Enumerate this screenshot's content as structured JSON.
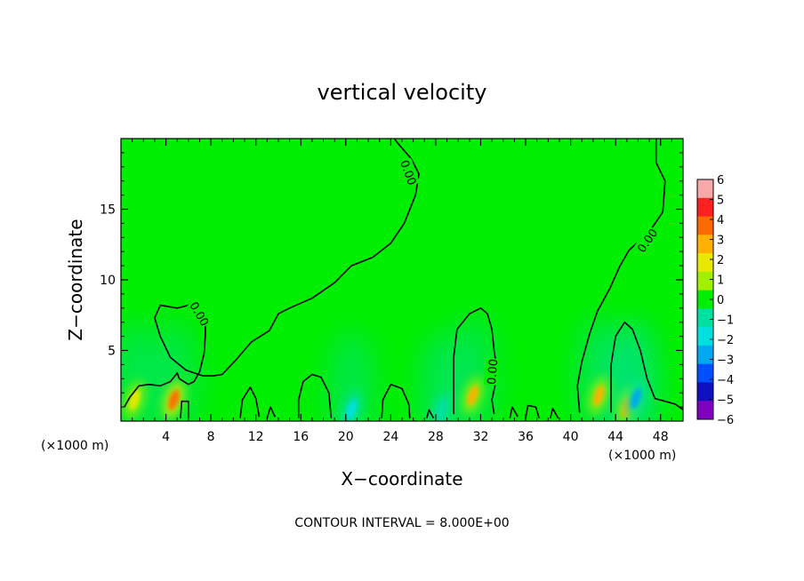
{
  "chart_data": {
    "type": "heatmap",
    "title": "vertical velocity",
    "xlabel": "X−coordinate",
    "ylabel": "Z−coordinate",
    "x_unit": "(×1000 m)",
    "y_unit": "(×1000 m)",
    "xlim": [
      0,
      50
    ],
    "ylim": [
      0,
      20
    ],
    "x_ticks": [
      4,
      8,
      12,
      16,
      20,
      24,
      28,
      32,
      36,
      40,
      44,
      48
    ],
    "y_ticks": [
      5,
      10,
      15
    ],
    "x_tick_labels": [
      "4",
      "8",
      "12",
      "16",
      "20",
      "24",
      "28",
      "32",
      "36",
      "40",
      "44",
      "48"
    ],
    "y_tick_labels": [
      "5",
      "10",
      "15"
    ],
    "colorbar": {
      "ticks": [
        6,
        5,
        4,
        3,
        2,
        1,
        0,
        -1,
        -2,
        -3,
        -4,
        -5,
        -6
      ],
      "tick_labels": [
        "6",
        "5",
        "4",
        "3",
        "2",
        "1",
        "0",
        "−1",
        "−2",
        "−3",
        "−4",
        "−5",
        "−6"
      ],
      "colors": [
        "#f7a8a8",
        "#ff2020",
        "#ff6a00",
        "#ffb000",
        "#e8e800",
        "#a0f000",
        "#00ee00",
        "#00e0a0",
        "#00e0e0",
        "#00a8f0",
        "#0050ff",
        "#1010c0",
        "#8000c0"
      ]
    },
    "contour_interval_text": "CONTOUR INTERVAL = 8.000E+00",
    "contour_label": "0.00",
    "contour_zero": [
      {
        "name": "",
        "points": [
          [
            0.3,
            1.0
          ],
          [
            0.8,
            1.7
          ],
          [
            1.6,
            2.5
          ],
          [
            2.5,
            2.6
          ],
          [
            3.5,
            2.5
          ],
          [
            4.4,
            2.8
          ],
          [
            5.0,
            3.4
          ],
          [
            5.2,
            3.0
          ],
          [
            6.0,
            2.6
          ],
          [
            6.5,
            2.8
          ],
          [
            7.0,
            3.5
          ],
          [
            7.4,
            4.8
          ],
          [
            7.5,
            6.0
          ],
          [
            7.5,
            7.4
          ],
          [
            7.0,
            8.4
          ],
          [
            6.5,
            8.0
          ]
        ]
      },
      {
        "name": "",
        "points": [
          [
            7.0,
            8.4
          ],
          [
            5.0,
            8.0
          ],
          [
            3.5,
            8.2
          ],
          [
            3.0,
            7.3
          ],
          [
            3.5,
            6.0
          ],
          [
            4.4,
            4.5
          ],
          [
            5.8,
            3.6
          ],
          [
            7.3,
            3.2
          ],
          [
            8.2,
            3.2
          ]
        ]
      },
      {
        "name": "",
        "points": [
          [
            8.2,
            3.2
          ],
          [
            9.0,
            3.3
          ],
          [
            10.2,
            4.3
          ],
          [
            11.6,
            5.6
          ],
          [
            13.2,
            6.4
          ],
          [
            14.0,
            7.6
          ],
          [
            15.0,
            8.0
          ],
          [
            17.0,
            8.7
          ],
          [
            19.0,
            9.8
          ],
          [
            20.5,
            11.0
          ],
          [
            22.4,
            11.6
          ],
          [
            24.0,
            12.6
          ],
          [
            25.2,
            14.0
          ],
          [
            26.2,
            16.0
          ],
          [
            26.5,
            17.5
          ],
          [
            25.8,
            18.6
          ],
          [
            24.8,
            19.5
          ],
          [
            24.3,
            20.0
          ]
        ]
      },
      {
        "name": "",
        "points": [
          [
            29.6,
            0.5
          ],
          [
            29.6,
            4.5
          ],
          [
            29.9,
            6.5
          ],
          [
            31.0,
            7.6
          ],
          [
            32.0,
            8.0
          ],
          [
            32.6,
            7.6
          ],
          [
            33.0,
            6.5
          ],
          [
            33.2,
            5.0
          ],
          [
            33.5,
            3.3
          ],
          [
            33.0,
            1.5
          ],
          [
            33.2,
            0.5
          ]
        ]
      },
      {
        "name": "",
        "points": [
          [
            40.8,
            0.6
          ],
          [
            40.6,
            2.5
          ],
          [
            41.0,
            4.2
          ],
          [
            41.7,
            6.2
          ],
          [
            42.4,
            7.8
          ],
          [
            43.5,
            9.4
          ],
          [
            44.4,
            11.0
          ],
          [
            45.2,
            12.1
          ],
          [
            47.0,
            13.4
          ],
          [
            48.2,
            14.8
          ],
          [
            48.4,
            17.0
          ],
          [
            47.6,
            18.3
          ],
          [
            47.6,
            20.0
          ]
        ]
      },
      {
        "name": "",
        "points": [
          [
            43.6,
            0.6
          ],
          [
            43.6,
            4.0
          ],
          [
            44.0,
            6.0
          ],
          [
            44.8,
            7.0
          ],
          [
            45.5,
            6.5
          ],
          [
            46.2,
            5.0
          ],
          [
            46.8,
            3.0
          ],
          [
            47.5,
            1.6
          ],
          [
            48.4,
            1.4
          ],
          [
            49.3,
            1.2
          ],
          [
            50.0,
            0.8
          ]
        ]
      },
      {
        "name": "",
        "points": [
          [
            15.8,
            0.2
          ],
          [
            15.8,
            1.5
          ],
          [
            16.2,
            2.8
          ],
          [
            17.0,
            3.3
          ],
          [
            17.8,
            3.1
          ],
          [
            18.5,
            2.0
          ],
          [
            18.7,
            0.2
          ]
        ]
      },
      {
        "name": "",
        "points": [
          [
            23.2,
            0.2
          ],
          [
            23.3,
            1.5
          ],
          [
            24.0,
            2.6
          ],
          [
            25.0,
            2.3
          ],
          [
            25.6,
            1.2
          ],
          [
            25.7,
            0.2
          ]
        ]
      },
      {
        "name": "",
        "points": [
          [
            10.6,
            0.2
          ],
          [
            10.8,
            1.5
          ],
          [
            11.5,
            2.4
          ],
          [
            12.0,
            1.6
          ],
          [
            12.3,
            0.3
          ]
        ]
      },
      {
        "name": "",
        "points": [
          [
            13.0,
            0.2
          ],
          [
            13.3,
            1.0
          ],
          [
            13.7,
            0.3
          ]
        ]
      },
      {
        "name": "",
        "points": [
          [
            5.3,
            0.2
          ],
          [
            5.4,
            1.4
          ],
          [
            6.0,
            1.4
          ],
          [
            6.0,
            0.2
          ]
        ]
      },
      {
        "name": "",
        "points": [
          [
            34.6,
            0.2
          ],
          [
            34.8,
            1.0
          ],
          [
            35.3,
            0.3
          ]
        ]
      },
      {
        "name": "",
        "points": [
          [
            36.0,
            0.2
          ],
          [
            36.2,
            1.1
          ],
          [
            36.9,
            1.0
          ],
          [
            37.2,
            0.2
          ]
        ]
      },
      {
        "name": "",
        "points": [
          [
            38.2,
            0.2
          ],
          [
            38.4,
            0.9
          ],
          [
            38.9,
            0.2
          ]
        ]
      },
      {
        "name": "",
        "points": [
          [
            27.2,
            0.2
          ],
          [
            27.4,
            0.8
          ],
          [
            27.8,
            0.2
          ]
        ]
      }
    ],
    "anomalies": [
      {
        "x": 4.7,
        "z": 1.5,
        "value": 4.0
      },
      {
        "x": 31.3,
        "z": 1.8,
        "value": 3.0
      },
      {
        "x": 42.5,
        "z": 1.8,
        "value": 3.0
      },
      {
        "x": 45.0,
        "z": 1.0,
        "value": 2.5
      },
      {
        "x": 45.8,
        "z": 1.6,
        "value": -3.0
      },
      {
        "x": 20.5,
        "z": 0.8,
        "value": -1.8
      },
      {
        "x": 1.2,
        "z": 1.5,
        "value": 1.5
      },
      {
        "x": 28.5,
        "z": 0.7,
        "value": -1.5
      }
    ]
  }
}
